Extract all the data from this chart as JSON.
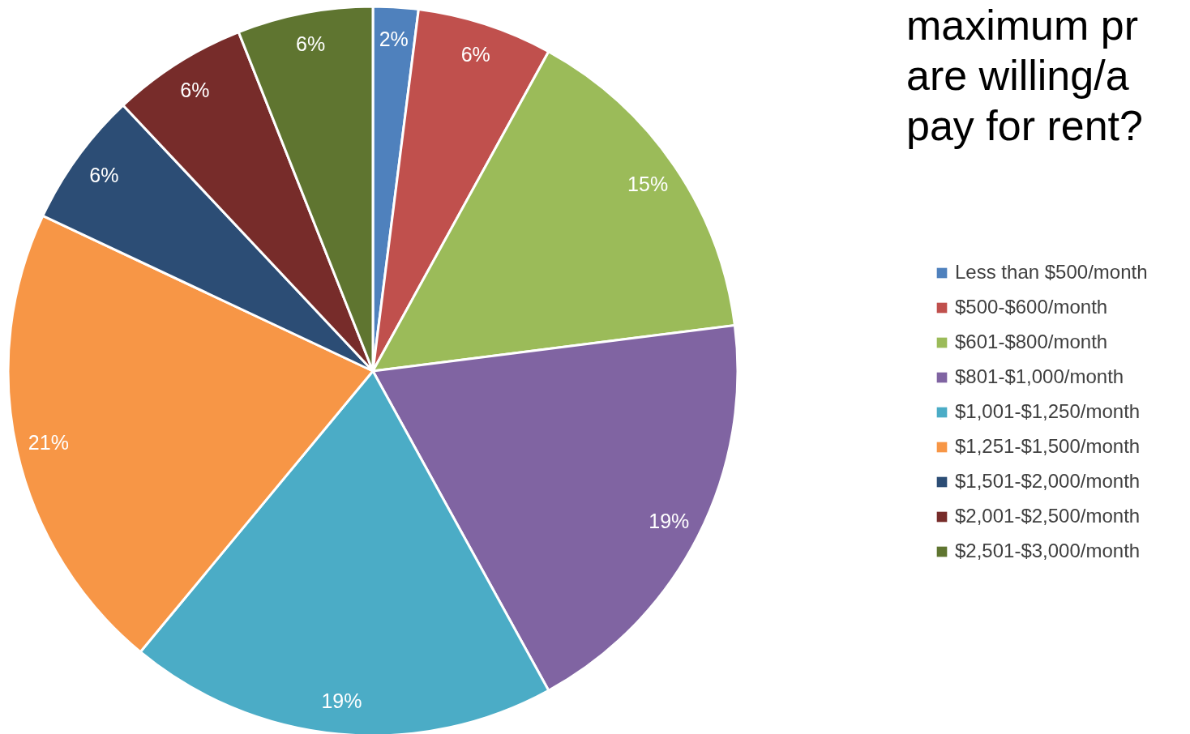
{
  "chart_data": {
    "type": "pie",
    "title": "maximum pr\nare willing/a\npay for rent?",
    "categories": [
      "Less than $500/month",
      "$500-$600/month",
      "$601-$800/month",
      "$801-$1,000/month",
      "$1,001-$1,250/month",
      "$1,251-$1,500/month",
      "$1,501-$2,000/month",
      "$2,001-$2,500/month",
      "$2,501-$3,000/month"
    ],
    "values": [
      2,
      6,
      15,
      19,
      19,
      21,
      6,
      6,
      6
    ],
    "value_labels": [
      "2%",
      "6%",
      "15%",
      "19%",
      "19%",
      "21%",
      "6%",
      "6%",
      "6%"
    ],
    "colors": [
      "#4f81bd",
      "#c0504d",
      "#9bbb59",
      "#8064a2",
      "#4bacc6",
      "#f79646",
      "#2c4d75",
      "#772c2a",
      "#5f7530"
    ],
    "legend": "right"
  }
}
